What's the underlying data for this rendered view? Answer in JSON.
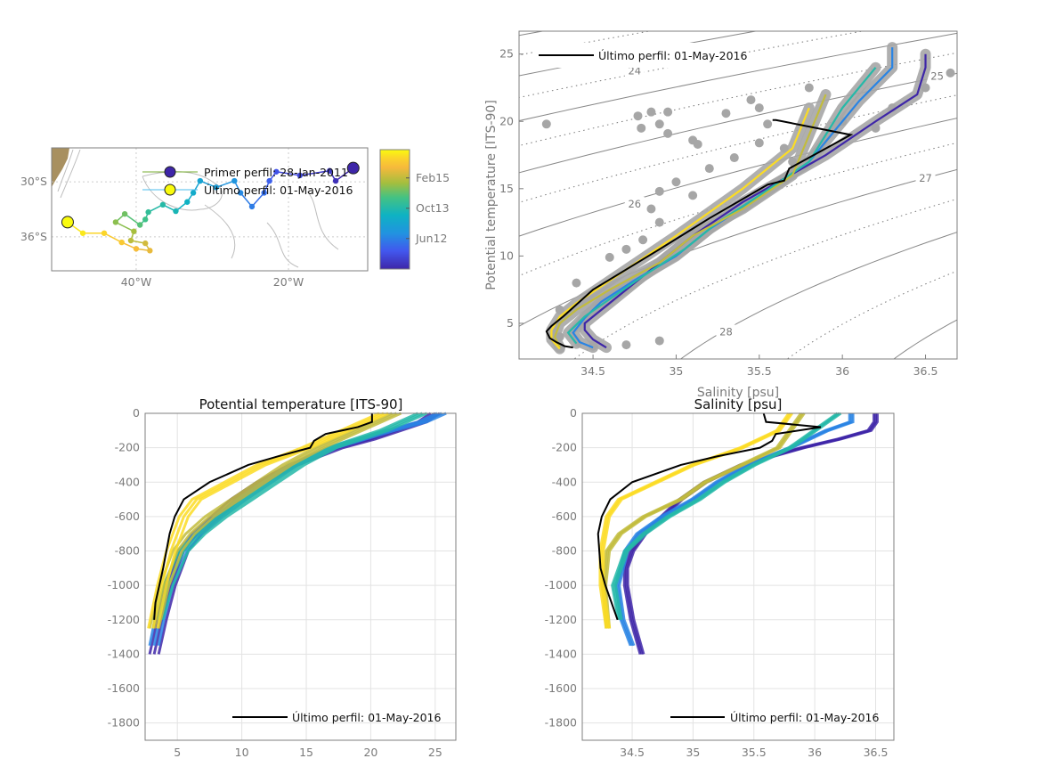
{
  "colors": {
    "axis": "#7f7f7f",
    "grid": "#e3e3e3",
    "last_profile": "#000000",
    "reference_points": "#a6a6a6",
    "land": "#a89060",
    "map_contour": "#bdbdbd"
  },
  "colormap": {
    "name": "parula",
    "stops": [
      [
        0,
        "#3e26a8"
      ],
      [
        0.15,
        "#4257ee"
      ],
      [
        0.3,
        "#2193e0"
      ],
      [
        0.45,
        "#0eb2c3"
      ],
      [
        0.6,
        "#44c283"
      ],
      [
        0.72,
        "#a4be3e"
      ],
      [
        0.85,
        "#f6b93c"
      ],
      [
        0.93,
        "#fbd42a"
      ],
      [
        1,
        "#f9fb0e"
      ]
    ]
  },
  "chart_data": [
    {
      "id": "map",
      "type": "scatter",
      "xlim": [
        -51.1,
        -9.6
      ],
      "ylim": [
        -39.7,
        -26.3
      ],
      "xticks": [
        {
          "value": -40,
          "label": "40°W"
        },
        {
          "value": -20,
          "label": "20°W"
        }
      ],
      "yticks": [
        {
          "value": -30,
          "label": "30°S"
        },
        {
          "value": -36,
          "label": "36°S"
        }
      ],
      "grid": "dotted",
      "trajectory": {
        "start_date": "2011-01-28",
        "end_date": "2016-05-01",
        "lon": [
          -11.5,
          -13.8,
          -14.6,
          -18.5,
          -21.6,
          -22.5,
          -23.2,
          -24.8,
          -26.3,
          -27.1,
          -29.5,
          -31.6,
          -32.5,
          -33.3,
          -34.8,
          -36.5,
          -38.4,
          -38.8,
          -39.5,
          -41.5,
          -42.7,
          -40.3,
          -40.7,
          -38.8,
          -38.2,
          -40.0,
          -41.9,
          -44.2,
          -47.0,
          -49.0
        ],
        "lat": [
          -28.5,
          -29.9,
          -28.8,
          -29.3,
          -28.9,
          -29.9,
          -31.2,
          -32.7,
          -31.2,
          -29.9,
          -30.6,
          -29.9,
          -31.2,
          -32.2,
          -33.2,
          -32.5,
          -33.3,
          -34.1,
          -34.7,
          -33.5,
          -34.4,
          -35.4,
          -36.4,
          -36.7,
          -37.5,
          -37.3,
          -36.6,
          -35.6,
          -35.6,
          -34.4
        ]
      },
      "legend": [
        {
          "label": "Primer perfil: 28-Jan-2011",
          "line_color": "#77ac30",
          "marker_color": "#3e26a8"
        },
        {
          "label": "Último perfil: 01-May-2016",
          "line_color": "#4dbeee",
          "marker_color": "#f9fb0e"
        }
      ],
      "colorbar": {
        "range": [
          "2011-01-28",
          "2016-05-01"
        ],
        "ticks": [
          {
            "date": "2012-06-01",
            "label": "Jun12"
          },
          {
            "date": "2013-10-01",
            "label": "Oct13"
          },
          {
            "date": "2015-02-01",
            "label": "Feb15"
          }
        ]
      }
    },
    {
      "id": "ts",
      "type": "line",
      "xlabel": "Salinity [psu]",
      "ylabel": "Potential temperature [ITS-90]",
      "xlim": [
        34.055,
        36.69
      ],
      "ylim": [
        2.35,
        26.7
      ],
      "xticks": [
        34.5,
        35,
        35.5,
        36,
        36.5
      ],
      "yticks": [
        5,
        10,
        15,
        20,
        25
      ],
      "isopycnals": {
        "solid": [
          22,
          23,
          24,
          25,
          26,
          27,
          28,
          29
        ],
        "dotted": [
          22.5,
          23.5,
          24.5,
          25.5,
          26.5,
          27.5,
          28.5
        ],
        "labels": [
          {
            "value": 24,
            "s": 34.75,
            "t": 23.7
          },
          {
            "value": 26,
            "s": 34.75,
            "t": 13.8
          },
          {
            "value": 25,
            "s": 36.57,
            "t": 23.3
          },
          {
            "value": 27,
            "s": 36.5,
            "t": 15.7
          },
          {
            "value": 28,
            "s": 35.3,
            "t": 4.3
          }
        ]
      },
      "reference_points": {
        "s": [
          34.22,
          34.77,
          34.79,
          34.85,
          34.95,
          34.9,
          34.95,
          35.1,
          35.13,
          35.3,
          35.45,
          35.5,
          35.55,
          35.5,
          35.65,
          35.8,
          35.35,
          35.2,
          35.0,
          34.9,
          34.85,
          34.9,
          34.8,
          34.6,
          34.4,
          34.3,
          34.3,
          34.5,
          34.7,
          34.9,
          36.3,
          36.5,
          36.65,
          36.0,
          36.2,
          35.1,
          34.7,
          35.7
        ],
        "t": [
          19.8,
          20.4,
          19.5,
          20.7,
          20.7,
          19.8,
          19.1,
          18.6,
          18.3,
          20.6,
          21.6,
          21.0,
          19.8,
          18.4,
          18.0,
          22.5,
          17.3,
          16.5,
          15.5,
          14.8,
          13.5,
          12.5,
          11.2,
          9.9,
          8.0,
          6.0,
          4.0,
          3.3,
          3.4,
          3.7,
          21.0,
          22.5,
          23.6,
          20.0,
          19.5,
          14.5,
          10.5,
          17.0
        ]
      },
      "legend": {
        "label": "Último perfil: 01-May-2016",
        "position": "top-left"
      }
    },
    {
      "id": "temp_profile",
      "type": "line",
      "title": "Potential temperature [ITS-90]",
      "xlim": [
        2.5,
        26.6
      ],
      "ylim": [
        -1900,
        0
      ],
      "xticks": [
        5,
        10,
        15,
        20,
        25
      ],
      "yticks": [
        0,
        -200,
        -400,
        -600,
        -800,
        -1000,
        -1200,
        -1400,
        -1600,
        -1800
      ],
      "grid": "on",
      "legend": {
        "label": "Último perfil: 01-May-2016",
        "position": "bottom-right"
      }
    },
    {
      "id": "sal_profile",
      "type": "line",
      "title": "Salinity [psu]",
      "xlim": [
        34.09,
        36.65
      ],
      "ylim": [
        -1900,
        0
      ],
      "xticks": [
        34.5,
        35,
        35.5,
        36,
        36.5
      ],
      "yticks": [
        0,
        -200,
        -400,
        -600,
        -800,
        -1000,
        -1200,
        -1400,
        -1600,
        -1800
      ],
      "grid": "on",
      "legend": {
        "label": "Último perfil: 01-May-2016",
        "position": "bottom-right"
      }
    }
  ],
  "profiles": [
    {
      "date": "2011-01-28",
      "depth": [
        0,
        -50,
        -100,
        -150,
        -200,
        -300,
        -400,
        -500,
        -600,
        -700,
        -800,
        -900,
        -1000,
        -1200,
        -1400
      ],
      "t": [
        25,
        24,
        22,
        20,
        17.5,
        14,
        11.5,
        9.5,
        8,
        6.5,
        5.5,
        5,
        4.5,
        3.8,
        3.2
      ],
      "s": [
        36.5,
        36.5,
        36.45,
        36.2,
        35.9,
        35.4,
        35.1,
        34.9,
        34.75,
        34.6,
        34.5,
        34.45,
        34.45,
        34.5,
        34.58
      ]
    },
    {
      "date": "2012-06-15",
      "depth": [
        0,
        -50,
        -100,
        -200,
        -300,
        -400,
        -500,
        -600,
        -700,
        -800,
        -1000,
        -1200,
        -1350
      ],
      "t": [
        25.5,
        24,
        21.5,
        17,
        14,
        12,
        10,
        8.2,
        6.6,
        5.4,
        4.3,
        3.6,
        3.2
      ],
      "s": [
        36.3,
        36.3,
        36.1,
        35.8,
        35.45,
        35.2,
        35.0,
        34.75,
        34.55,
        34.45,
        34.38,
        34.42,
        34.5
      ]
    },
    {
      "date": "2013-10-10",
      "depth": [
        0,
        -100,
        -200,
        -300,
        -400,
        -500,
        -600,
        -700,
        -800,
        -1000,
        -1200
      ],
      "t": [
        24,
        21,
        17,
        14.5,
        12.5,
        10.5,
        8.5,
        6.8,
        5.5,
        4.3,
        3.5
      ],
      "s": [
        36.2,
        36.0,
        35.8,
        35.5,
        35.25,
        35.05,
        34.8,
        34.6,
        34.45,
        34.35,
        34.4
      ]
    },
    {
      "date": "2015-02-10",
      "depth": [
        0,
        -100,
        -200,
        -300,
        -400,
        -500,
        -600,
        -700,
        -800,
        -1000,
        -1250
      ],
      "t": [
        22,
        19,
        16,
        13.5,
        11.5,
        9.5,
        7.5,
        6,
        5,
        4,
        3.2
      ],
      "s": [
        35.9,
        35.8,
        35.7,
        35.4,
        35.1,
        34.9,
        34.6,
        34.4,
        34.3,
        34.27,
        34.3
      ]
    },
    {
      "date": "2016-01-15",
      "depth": [
        0,
        -100,
        -200,
        -300,
        -400,
        -500,
        -600,
        -800,
        -1000,
        -1250
      ],
      "t": [
        21,
        18,
        15,
        11.5,
        9,
        6.5,
        5.5,
        4.5,
        3.8,
        3.1
      ],
      "s": [
        35.8,
        35.7,
        35.4,
        35.0,
        34.7,
        34.4,
        34.3,
        34.25,
        34.25,
        34.3
      ]
    }
  ],
  "last_profile": {
    "date": "2016-05-01",
    "depth": [
      0,
      -50,
      -80,
      -120,
      -160,
      -200,
      -250,
      -300,
      -400,
      -500,
      -600,
      -700,
      -900,
      -1000,
      -1100,
      -1200
    ],
    "t": [
      20.1,
      20.1,
      19.0,
      16.5,
      15.6,
      15.3,
      12.8,
      10.5,
      7.5,
      5.5,
      4.8,
      4.4,
      3.9,
      3.6,
      3.3,
      3.2
    ],
    "s": [
      35.58,
      35.6,
      36.05,
      35.68,
      35.65,
      35.55,
      35.2,
      34.9,
      34.5,
      34.32,
      34.25,
      34.22,
      34.24,
      34.28,
      34.33,
      34.38
    ]
  }
}
